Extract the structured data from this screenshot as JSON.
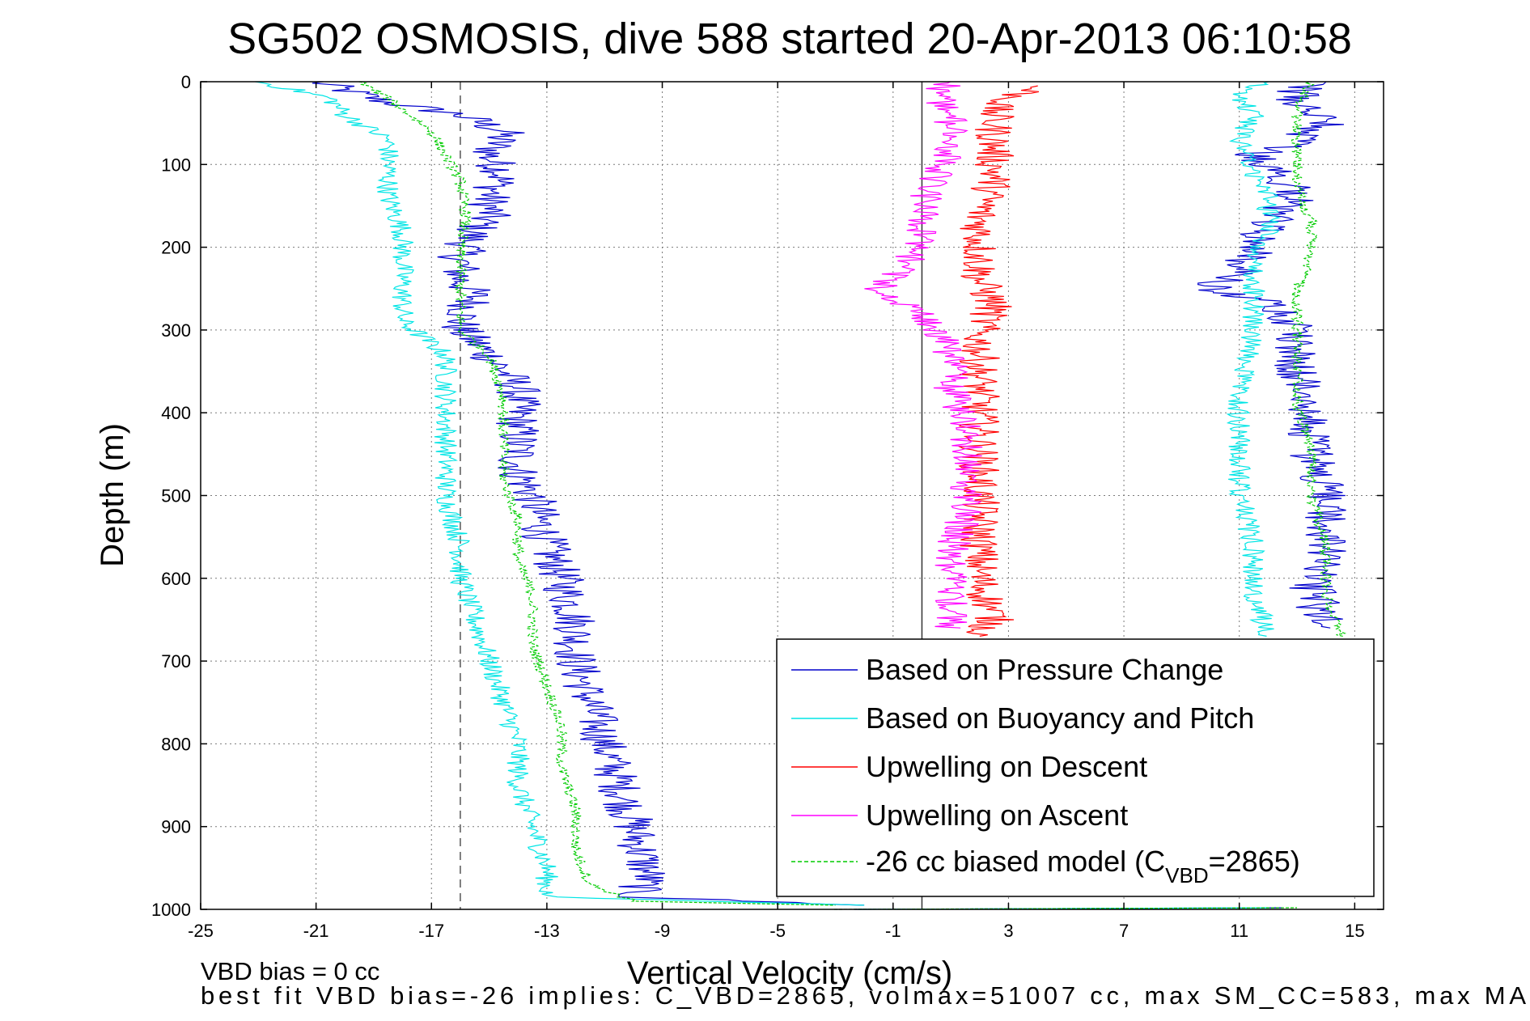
{
  "chart_data": {
    "type": "line",
    "title": "SG502 OSMOSIS, dive 588 started 20-Apr-2013 06:10:58",
    "xlabel": "Vertical Velocity (cm/s)",
    "ylabel": "Depth (m)",
    "xlim": [
      -25,
      16
    ],
    "ylim": [
      1000,
      0
    ],
    "y_reversed": true,
    "grid": true,
    "legend_position": "bottom-right",
    "x_tick_labels": [
      "-25",
      "-21",
      "-17",
      "-13",
      "-9",
      "-5",
      "-1",
      "3",
      "7",
      "11",
      "15"
    ],
    "y_tick_labels": [
      "0",
      "100",
      "200",
      "300",
      "400",
      "500",
      "600",
      "700",
      "800",
      "900",
      "1000"
    ],
    "reference_lines": [
      {
        "kind": "solid",
        "x": 0
      },
      {
        "kind": "dashed",
        "x": -16
      }
    ],
    "footer_lines": [
      "VBD bias = 0 cc",
      "best fit VBD bias=-26 implies: C_VBD=2865, volmax=51007 cc, max SM_CC=583, max MA"
    ],
    "legend": [
      {
        "label": "Based on Pressure Change",
        "color": "#0000cc"
      },
      {
        "label": "Based on Buoyancy and Pitch",
        "color": "#00e5e5"
      },
      {
        "label": "Upwelling on Descent",
        "color": "#ff0000"
      },
      {
        "label": "Upwelling on Ascent",
        "color": "#ff00ff"
      },
      {
        "label": "-26 cc biased model (C",
        "sub": "VBD",
        "suffix": "=2865)",
        "color": "#00cc00",
        "dashed": true
      }
    ],
    "series": [
      {
        "name": "Based on Pressure Change",
        "color": "#0000cc",
        "segments": [
          {
            "noise": 0.8,
            "points": [
              [
                -21,
                0
              ],
              [
                -18.5,
                25
              ],
              [
                -16,
                40
              ],
              [
                -14.5,
                60
              ],
              [
                -15,
                90
              ],
              [
                -14.5,
                110
              ],
              [
                -15,
                140
              ],
              [
                -15,
                160
              ],
              [
                -15.5,
                180
              ],
              [
                -16,
                210
              ],
              [
                -16,
                240
              ],
              [
                -15.5,
                260
              ],
              [
                -16,
                290
              ],
              [
                -16,
                300
              ],
              [
                -15,
                330
              ],
              [
                -14,
                370
              ],
              [
                -14,
                420
              ],
              [
                -14,
                470
              ],
              [
                -13.5,
                500
              ],
              [
                -13,
                560
              ],
              [
                -12.5,
                600
              ],
              [
                -12,
                650
              ],
              [
                -12,
                700
              ],
              [
                -11.5,
                750
              ],
              [
                -11,
                800
              ],
              [
                -10.5,
                850
              ],
              [
                -10,
                900
              ],
              [
                -9.5,
                960
              ],
              [
                -10,
                985
              ],
              [
                -2,
                995
              ]
            ]
          },
          {
            "noise": 0.8,
            "points": [
              [
                -2,
                1000
              ],
              [
                12.5,
                998
              ]
            ]
          },
          {
            "noise": 0.8,
            "points": [
              [
                14,
                660
              ],
              [
                13.5,
                610
              ],
              [
                14,
                560
              ],
              [
                14,
                500
              ],
              [
                13.5,
                450
              ],
              [
                13.5,
                400
              ],
              [
                13,
                350
              ],
              [
                13,
                300
              ],
              [
                12.5,
                270
              ],
              [
                10,
                250
              ],
              [
                11,
                230
              ],
              [
                11.5,
                200
              ],
              [
                12,
                170
              ],
              [
                13,
                140
              ],
              [
                12.5,
                110
              ],
              [
                11.5,
                90
              ],
              [
                13,
                70
              ],
              [
                14,
                50
              ],
              [
                13,
                30
              ],
              [
                13,
                10
              ],
              [
                14,
                0
              ]
            ]
          }
        ]
      },
      {
        "name": "Based on Buoyancy and Pitch",
        "color": "#00e5e5",
        "segments": [
          {
            "noise": 0.4,
            "points": [
              [
                -23,
                0
              ],
              [
                -20.5,
                20
              ],
              [
                -20,
                40
              ],
              [
                -18.5,
                70
              ],
              [
                -18.5,
                100
              ],
              [
                -18.5,
                140
              ],
              [
                -18,
                180
              ],
              [
                -18,
                210
              ],
              [
                -18,
                250
              ],
              [
                -18,
                290
              ],
              [
                -16.5,
                330
              ],
              [
                -16.5,
                380
              ],
              [
                -16.5,
                420
              ],
              [
                -16.5,
                470
              ],
              [
                -16.5,
                500
              ],
              [
                -16,
                560
              ],
              [
                -16,
                600
              ],
              [
                -15.5,
                650
              ],
              [
                -15,
                700
              ],
              [
                -14.5,
                750
              ],
              [
                -14,
                800
              ],
              [
                -14,
                850
              ],
              [
                -13.5,
                900
              ],
              [
                -13,
                950
              ],
              [
                -13,
                985
              ],
              [
                -2,
                995
              ]
            ]
          },
          {
            "noise": 0.4,
            "points": [
              [
                -2,
                1000
              ],
              [
                12,
                998
              ]
            ]
          },
          {
            "noise": 0.4,
            "points": [
              [
                12,
                670
              ],
              [
                11.5,
                620
              ],
              [
                11.5,
                560
              ],
              [
                11,
                500
              ],
              [
                11,
                430
              ],
              [
                11,
                370
              ],
              [
                11.5,
                300
              ],
              [
                11.5,
                260
              ],
              [
                11.5,
                220
              ],
              [
                12,
                180
              ],
              [
                12,
                140
              ],
              [
                11.5,
                110
              ],
              [
                11,
                70
              ],
              [
                11.5,
                40
              ],
              [
                11,
                15
              ],
              [
                12,
                0
              ]
            ]
          }
        ]
      },
      {
        "name": "Upwelling on Descent",
        "color": "#ff0000",
        "segments": [
          {
            "noise": 0.7,
            "points": [
              [
                4,
                5
              ],
              [
                2.5,
                30
              ],
              [
                2.5,
                70
              ],
              [
                2.5,
                120
              ],
              [
                2,
                160
              ],
              [
                2,
                200
              ],
              [
                2,
                240
              ],
              [
                2.5,
                270
              ],
              [
                2,
                300
              ],
              [
                2,
                350
              ],
              [
                2,
                400
              ],
              [
                2,
                450
              ],
              [
                2,
                500
              ],
              [
                2,
                550
              ],
              [
                2,
                600
              ],
              [
                2.5,
                650
              ],
              [
                2,
                670
              ]
            ]
          }
        ]
      },
      {
        "name": "Upwelling on Ascent",
        "color": "#ff00ff",
        "segments": [
          {
            "noise": 0.6,
            "points": [
              [
                1,
                660
              ],
              [
                1,
                620
              ],
              [
                1,
                570
              ],
              [
                1.5,
                520
              ],
              [
                1.5,
                470
              ],
              [
                1.5,
                420
              ],
              [
                1,
                370
              ],
              [
                1,
                330
              ],
              [
                0.5,
                300
              ],
              [
                -0.5,
                270
              ],
              [
                -1.5,
                250
              ],
              [
                -0.5,
                220
              ],
              [
                0,
                190
              ],
              [
                0,
                150
              ],
              [
                0.5,
                110
              ],
              [
                1,
                80
              ],
              [
                1,
                40
              ],
              [
                0.5,
                15
              ],
              [
                1,
                0
              ]
            ]
          }
        ]
      },
      {
        "name": "-26 cc biased model",
        "color": "#00cc00",
        "dashed": true,
        "segments": [
          {
            "noise": 0.2,
            "points": [
              [
                -19.5,
                0
              ],
              [
                -18.5,
                20
              ],
              [
                -17,
                60
              ],
              [
                -16.5,
                90
              ],
              [
                -16,
                120
              ],
              [
                -15.8,
                160
              ],
              [
                -16,
                200
              ],
              [
                -16,
                240
              ],
              [
                -16,
                300
              ],
              [
                -15,
                330
              ],
              [
                -14.5,
                380
              ],
              [
                -14.5,
                430
              ],
              [
                -14.5,
                480
              ],
              [
                -14,
                530
              ],
              [
                -14,
                580
              ],
              [
                -13.5,
                620
              ],
              [
                -13.5,
                680
              ],
              [
                -13,
                730
              ],
              [
                -12.5,
                780
              ],
              [
                -12.5,
                830
              ],
              [
                -12,
                880
              ],
              [
                -12,
                930
              ],
              [
                -11.5,
                970
              ],
              [
                -10,
                990
              ],
              [
                -3,
                995
              ]
            ]
          },
          {
            "noise": 0.2,
            "points": [
              [
                -3,
                1000
              ],
              [
                13,
                998
              ]
            ]
          },
          {
            "noise": 0.2,
            "points": [
              [
                14.5,
                670
              ],
              [
                14,
                620
              ],
              [
                14,
                560
              ],
              [
                13.5,
                500
              ],
              [
                13.5,
                440
              ],
              [
                13,
                390
              ],
              [
                13,
                340
              ],
              [
                13,
                290
              ],
              [
                13,
                250
              ],
              [
                13.5,
                210
              ],
              [
                13.5,
                170
              ],
              [
                13,
                130
              ],
              [
                13,
                100
              ],
              [
                13,
                60
              ],
              [
                13,
                30
              ],
              [
                13.5,
                0
              ]
            ]
          }
        ]
      }
    ]
  }
}
